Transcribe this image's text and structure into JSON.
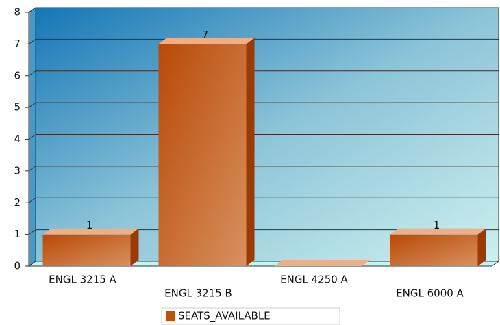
{
  "chart_data": {
    "type": "bar",
    "categories": [
      "ENGL 3215 A",
      "ENGL 3215 B",
      "ENGL 4250 A",
      "ENGL 6000 A"
    ],
    "series": [
      {
        "name": "SEATS_AVAILABLE",
        "color": "#c0500a",
        "values": [
          1,
          7,
          0,
          1
        ],
        "value_labels": [
          "1",
          "7",
          null,
          "1"
        ]
      }
    ],
    "ylim": [
      0,
      8
    ],
    "yticks": [
      0,
      1,
      2,
      3,
      4,
      5,
      6,
      7,
      8
    ],
    "grid": true,
    "legend": "bottom"
  }
}
